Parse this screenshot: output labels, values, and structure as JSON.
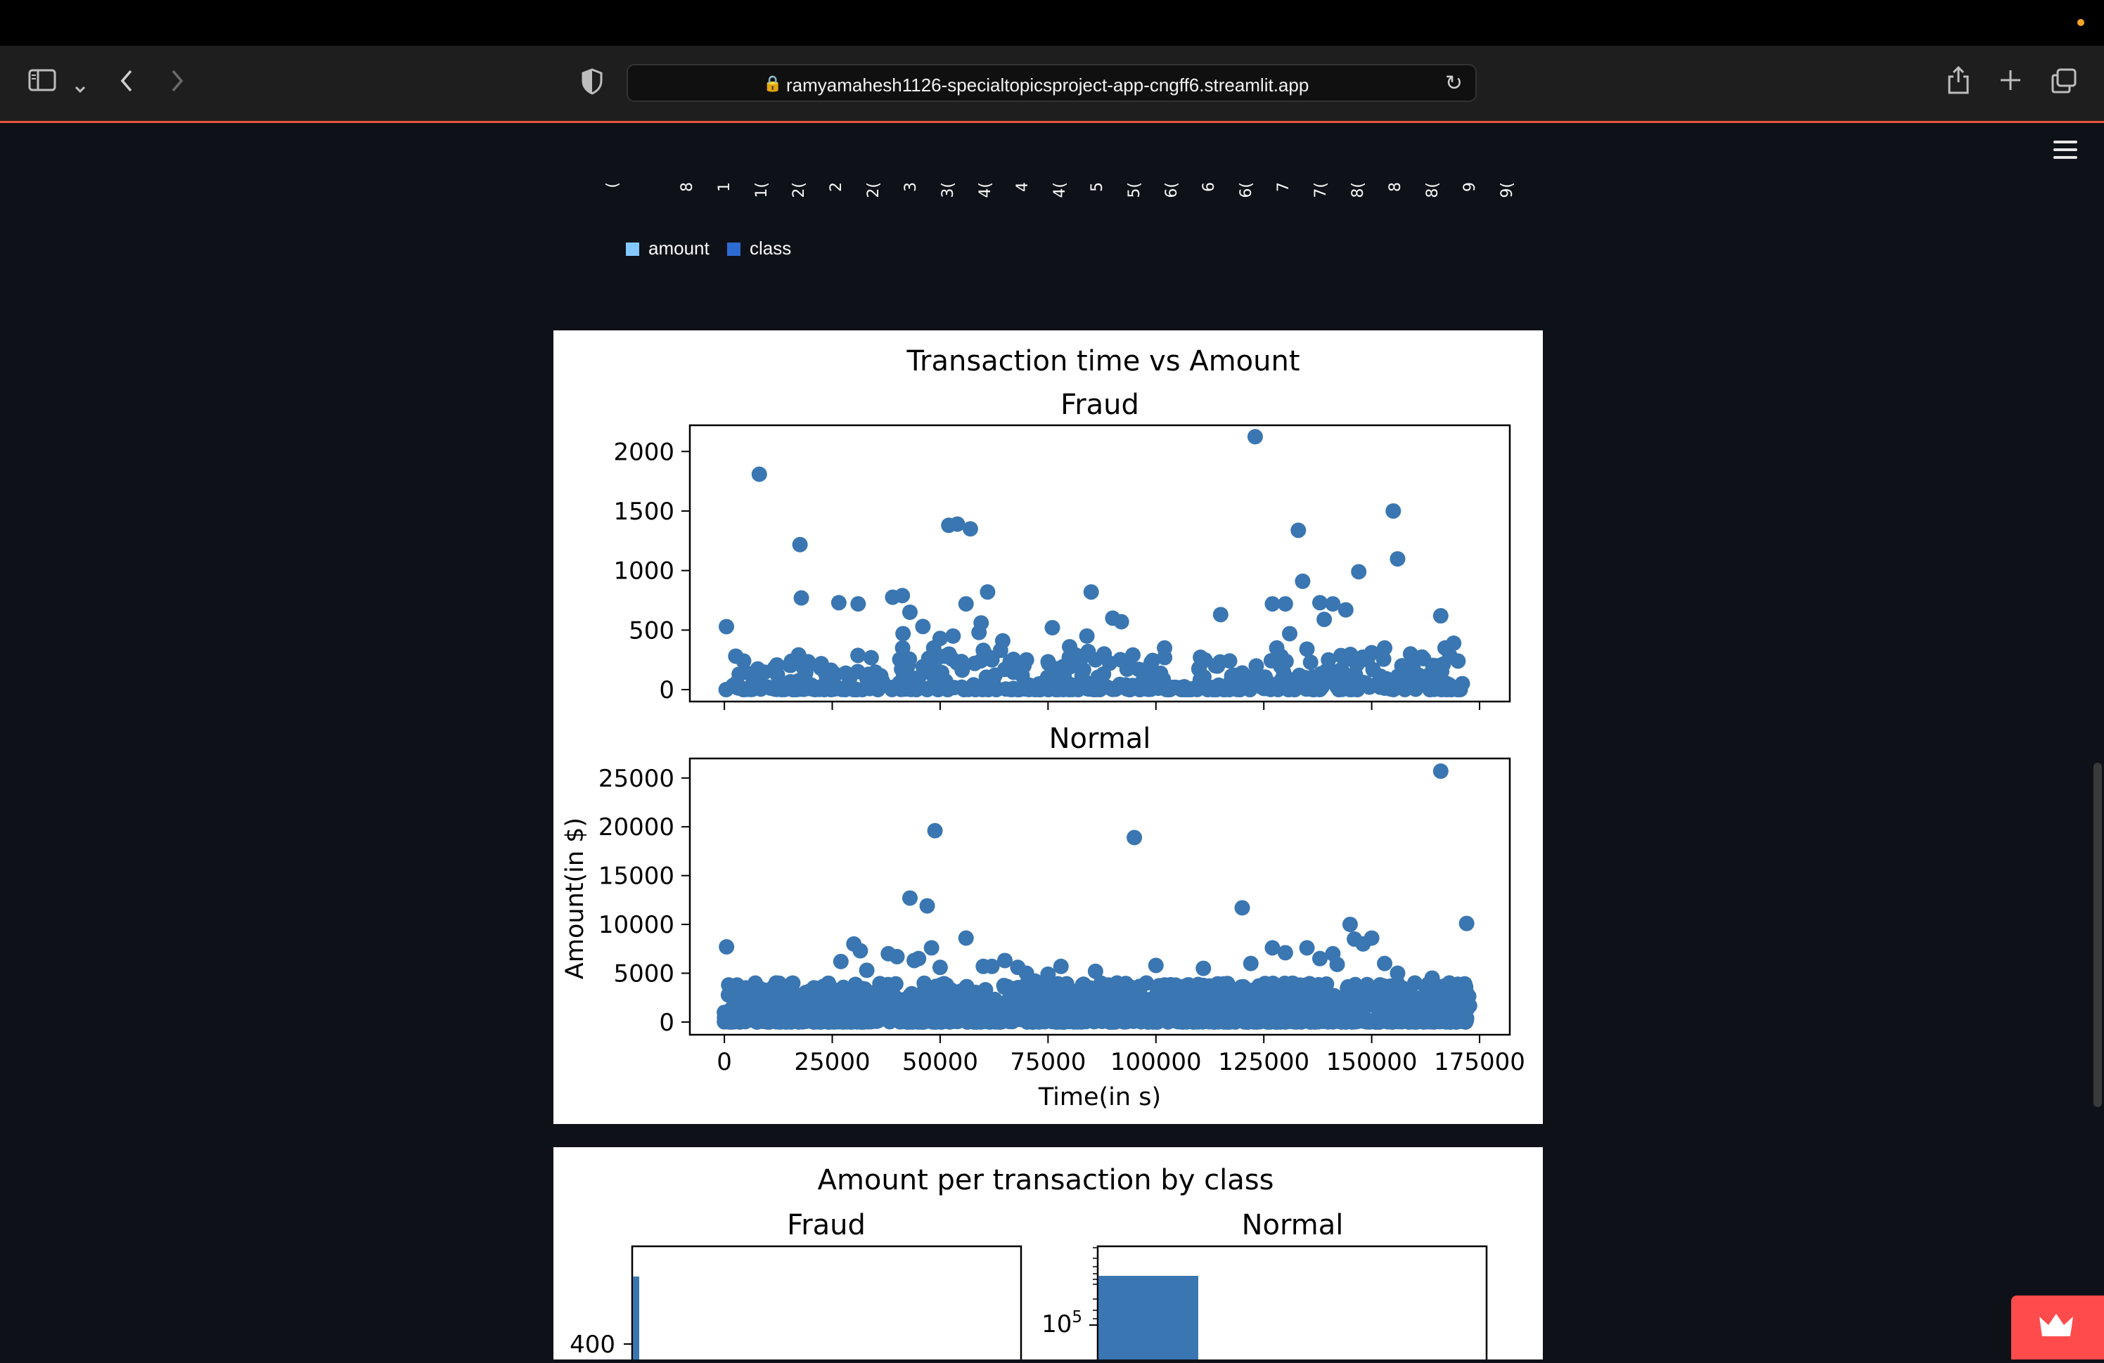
{
  "browser": {
    "url": "ramyamahesh1126-specialtopicsproject-app-cngff6.streamlit.app",
    "icons": [
      "sidebar-icon",
      "chevron-down-icon",
      "back-icon",
      "forward-icon",
      "shield-icon",
      "lock-icon",
      "reload-icon",
      "share-icon",
      "plus-icon",
      "tabs-icon"
    ]
  },
  "colors": {
    "scatter": "#3a76b1",
    "legend_amount": "#83c9ff",
    "legend_class": "#2c6bd1",
    "streamlit_badge": "#ff4b4b"
  },
  "top_chart_partial": {
    "x_tick_labels_clipped": [
      "(",
      "",
      "8",
      "1",
      "1(",
      "2(",
      "2",
      "2(",
      "3",
      "3(",
      "4(",
      "4",
      "4(",
      "5",
      "5(",
      "6(",
      "6",
      "6(",
      "7",
      "7(",
      "8(",
      "8",
      "8(",
      "9",
      "9("
    ],
    "legend": [
      "amount",
      "class"
    ]
  },
  "figure1": {
    "suptitle": "Transaction time vs Amount",
    "ylabel": "Amount(in $)",
    "xlabel": "Time(in s)"
  },
  "figure2": {
    "suptitle": "Amount per transaction by class"
  },
  "chart_data": [
    {
      "type": "scatter",
      "title": "Fraud",
      "xlabel": "",
      "ylabel": "",
      "xlim": [
        -8000,
        182000
      ],
      "ylim": [
        -100,
        2220
      ],
      "x_ticks": [
        0,
        25000,
        50000,
        75000,
        100000,
        125000,
        150000,
        175000
      ],
      "y_ticks": [
        0,
        500,
        1000,
        1500,
        2000
      ],
      "x_tick_labels_shown": false,
      "grid": false,
      "x": [
        406,
        472,
        4462,
        6986,
        8090,
        8408,
        9064,
        11630,
        12093,
        14073,
        17520,
        17838,
        18088,
        18399,
        19500,
        20451,
        21000,
        25095,
        26523,
        28143,
        28000,
        29000,
        30000,
        31000,
        33000,
        35000,
        35585,
        39000,
        40000,
        41233,
        41300,
        41400,
        41500,
        42000,
        42500,
        43000,
        43300,
        44000,
        44500,
        45000,
        46000,
        48000,
        48500,
        49000,
        50000,
        51000,
        52000,
        53000,
        54000,
        55000,
        56000,
        57000,
        58000,
        59000,
        59500,
        60000,
        61000,
        62000,
        63000,
        64000,
        64500,
        65000,
        66000,
        67000,
        68000,
        69000,
        70000,
        71000,
        72000,
        73000,
        74000,
        75000,
        76000,
        78000,
        80000,
        82000,
        84000,
        84300,
        85000,
        86000,
        87000,
        88000,
        90000,
        91000,
        92000,
        93000,
        94000,
        95000,
        96000,
        97000,
        100000,
        101000,
        102000,
        103000,
        110000,
        111000,
        112000,
        115000,
        118000,
        119000,
        120000,
        122000,
        123000,
        124000,
        125000,
        126000,
        127000,
        128000,
        129000,
        130000,
        131000,
        132000,
        133000,
        134000,
        135000,
        136000,
        137000,
        138000,
        139000,
        140000,
        141000,
        142000,
        143000,
        144000,
        145000,
        146000,
        147000,
        148000,
        149000,
        150000,
        151000,
        152000,
        153000,
        154000,
        155000,
        156000,
        157000,
        158000,
        159000,
        160000,
        161000,
        162000,
        163000,
        164000,
        165000,
        166000,
        167000,
        168000,
        169000,
        170000,
        171000
      ],
      "y": [
        0,
        529,
        240,
        60,
        1809,
        5,
        30,
        180,
        2,
        20,
        1218,
        770,
        3,
        180,
        10,
        5,
        0,
        90,
        730,
        10,
        0,
        90,
        5,
        720,
        99,
        20,
        0,
        776,
        30,
        790,
        350,
        470,
        140,
        80,
        200,
        650,
        20,
        30,
        0,
        100,
        530,
        190,
        350,
        10,
        430,
        280,
        1380,
        450,
        1390,
        20,
        720,
        1350,
        220,
        480,
        560,
        330,
        820,
        250,
        0,
        330,
        410,
        170,
        200,
        10,
        0,
        120,
        250,
        30,
        0,
        0,
        10,
        30,
        520,
        30,
        360,
        0,
        450,
        320,
        820,
        250,
        0,
        300,
        600,
        20,
        570,
        40,
        0,
        20,
        170,
        140,
        20,
        30,
        350,
        0,
        180,
        70,
        0,
        630,
        120,
        80,
        140,
        40,
        2124,
        30,
        10,
        60,
        720,
        350,
        280,
        720,
        470,
        40,
        1338,
        910,
        340,
        60,
        30,
        730,
        590,
        250,
        720,
        150,
        170,
        670,
        260,
        30,
        990,
        60,
        250,
        310,
        40,
        20,
        350,
        80,
        1500,
        1098,
        200,
        100,
        300,
        30,
        120,
        260,
        80,
        30,
        60,
        620,
        350,
        40,
        390,
        240,
        50
      ],
      "color": "#3a76b1"
    },
    {
      "type": "scatter",
      "title": "Normal",
      "xlabel": "Time(in s)",
      "ylabel": "Amount(in $)",
      "xlim": [
        -8000,
        182000
      ],
      "ylim": [
        -1300,
        27000
      ],
      "x_ticks": [
        0,
        25000,
        50000,
        75000,
        100000,
        125000,
        150000,
        175000
      ],
      "y_ticks": [
        0,
        5000,
        10000,
        15000,
        20000,
        25000
      ],
      "grid": false,
      "x": [
        500,
        1000,
        5000,
        8000,
        12000,
        16000,
        20000,
        27000,
        30000,
        31500,
        33000,
        38000,
        40000,
        43000,
        44000,
        45000,
        47000,
        48000,
        48800,
        50000,
        56000,
        60000,
        62000,
        65000,
        68000,
        70000,
        72000,
        75000,
        78000,
        83000,
        86000,
        91000,
        95000,
        100000,
        102000,
        111000,
        120000,
        122000,
        127000,
        130000,
        135000,
        138000,
        141000,
        142000,
        145000,
        146000,
        148000,
        150000,
        153000,
        156000,
        160000,
        164000,
        166000,
        168000,
        172000
      ],
      "y": [
        7700,
        3800,
        3500,
        2500,
        4000,
        3000,
        2500,
        6200,
        8000,
        7300,
        5300,
        7000,
        6700,
        12700,
        6300,
        6500,
        11900,
        7600,
        19600,
        5600,
        8600,
        5700,
        5700,
        6300,
        5600,
        5000,
        4200,
        4900,
        5700,
        3800,
        5200,
        4000,
        18900,
        5800,
        3800,
        5500,
        11700,
        6000,
        7600,
        7100,
        7600,
        6500,
        7000,
        5900,
        10000,
        8500,
        8000,
        8600,
        6000,
        5000,
        4000,
        4500,
        25700,
        4000,
        10100
      ],
      "dense_band": {
        "x_range": [
          0,
          172800
        ],
        "y_range": [
          0,
          4000
        ]
      },
      "color": "#3a76b1"
    },
    {
      "type": "bar",
      "title": "Fraud",
      "yticks_visible": [
        "400"
      ],
      "note": "histogram, cropped at bottom of viewport",
      "color": "#3a76b1"
    },
    {
      "type": "bar",
      "title": "Normal",
      "yscale": "log",
      "yticks_visible": [
        "10^5"
      ],
      "note": "histogram, cropped at bottom of viewport",
      "color": "#3a76b1"
    }
  ]
}
